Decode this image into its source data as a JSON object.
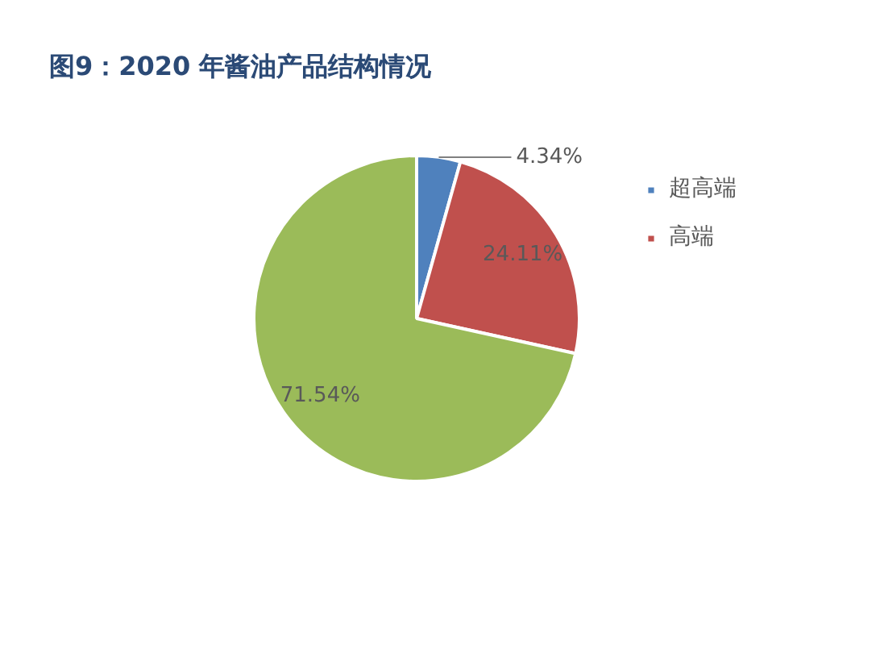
{
  "chart_data": {
    "type": "pie",
    "title": "图9：2020 年酱油产品结构情况",
    "categories": [
      "超高端",
      "高端",
      null
    ],
    "values": [
      4.34,
      24.11,
      71.54
    ],
    "colors": [
      "#4f81bd",
      "#c0504d",
      "#9bbb59"
    ],
    "value_labels": [
      "4.34%",
      "24.11%",
      "71.54%"
    ],
    "legend": "right"
  }
}
